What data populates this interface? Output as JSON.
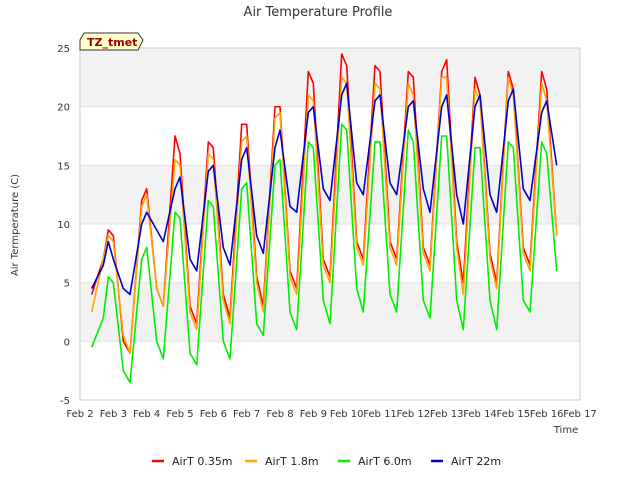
{
  "chart_data": {
    "type": "line",
    "title": "Air Temperature Profile",
    "xlabel": "Time",
    "ylabel": "Air Termperature (C)",
    "badge": "TZ_tmet",
    "xlim": [
      2,
      17
    ],
    "ylim": [
      -5,
      25
    ],
    "yticks": [
      -5,
      0,
      5,
      10,
      15,
      20,
      25
    ],
    "xticks": [
      {
        "v": 2,
        "label": "Feb 2"
      },
      {
        "v": 3,
        "label": "Feb 3"
      },
      {
        "v": 4,
        "label": "Feb 4"
      },
      {
        "v": 5,
        "label": "Feb 5"
      },
      {
        "v": 6,
        "label": "Feb 6"
      },
      {
        "v": 7,
        "label": "Feb 7"
      },
      {
        "v": 8,
        "label": "Feb 8"
      },
      {
        "v": 9,
        "label": "Feb 9"
      },
      {
        "v": 10,
        "label": "Feb 10"
      },
      {
        "v": 11,
        "label": "Feb 11"
      },
      {
        "v": 12,
        "label": "Feb 12"
      },
      {
        "v": 13,
        "label": "Feb 13"
      },
      {
        "v": 14,
        "label": "Feb 14"
      },
      {
        "v": 15,
        "label": "Feb 15"
      },
      {
        "v": 16,
        "label": "Feb 16"
      },
      {
        "v": 17,
        "label": "Feb 17"
      }
    ],
    "grid": true,
    "legend_position": "bottom",
    "series": [
      {
        "name": "AirT 0.35m",
        "color": "#ff0000",
        "x": [
          2.35,
          2.7,
          2.85,
          3.0,
          3.3,
          3.5,
          3.85,
          4.0,
          4.3,
          4.5,
          4.85,
          5.0,
          5.3,
          5.5,
          5.85,
          6.0,
          6.3,
          6.5,
          6.85,
          7.0,
          7.3,
          7.5,
          7.85,
          8.0,
          8.3,
          8.5,
          8.85,
          9.0,
          9.3,
          9.5,
          9.85,
          10.0,
          10.3,
          10.5,
          10.85,
          11.0,
          11.3,
          11.5,
          11.85,
          12.0,
          12.3,
          12.5,
          12.85,
          13.0,
          13.3,
          13.5,
          13.85,
          14.0,
          14.3,
          14.5,
          14.85,
          15.0,
          15.3,
          15.5,
          15.85,
          16.0,
          16.3
        ],
        "y": [
          4.0,
          7.0,
          9.5,
          9.0,
          0.0,
          -1.0,
          12.0,
          13.0,
          4.5,
          3.0,
          17.5,
          16.0,
          3.0,
          1.5,
          17.0,
          16.5,
          4.0,
          2.0,
          18.5,
          18.5,
          5.5,
          3.0,
          20.0,
          20.0,
          6.0,
          4.5,
          23.0,
          22.0,
          7.0,
          5.5,
          24.5,
          23.5,
          8.5,
          7.0,
          23.5,
          23.0,
          8.5,
          7.0,
          23.0,
          22.5,
          8.0,
          6.5,
          23.0,
          24.0,
          8.5,
          5.0,
          22.5,
          21.0,
          7.5,
          5.0,
          23.0,
          21.5,
          8.0,
          6.5,
          23.0,
          21.5,
          9.0
        ]
      },
      {
        "name": "AirT 1.8m",
        "color": "#ffa500",
        "x": [
          2.35,
          2.7,
          2.85,
          3.0,
          3.3,
          3.5,
          3.85,
          4.0,
          4.3,
          4.5,
          4.85,
          5.0,
          5.3,
          5.5,
          5.85,
          6.0,
          6.3,
          6.5,
          6.85,
          7.0,
          7.3,
          7.5,
          7.85,
          8.0,
          8.3,
          8.5,
          8.85,
          9.0,
          9.3,
          9.5,
          9.85,
          10.0,
          10.3,
          10.5,
          10.85,
          11.0,
          11.3,
          11.5,
          11.85,
          12.0,
          12.3,
          12.5,
          12.85,
          13.0,
          13.3,
          13.5,
          13.85,
          14.0,
          14.3,
          14.5,
          14.85,
          15.0,
          15.3,
          15.5,
          15.85,
          16.0,
          16.3
        ],
        "y": [
          2.5,
          7.0,
          9.0,
          8.5,
          0.5,
          -1.0,
          11.5,
          12.5,
          4.5,
          3.0,
          15.5,
          15.0,
          2.5,
          1.0,
          16.0,
          15.5,
          3.5,
          1.5,
          17.0,
          17.5,
          5.0,
          2.5,
          19.0,
          19.5,
          5.5,
          4.0,
          21.0,
          20.5,
          6.5,
          5.0,
          22.5,
          22.0,
          8.0,
          6.5,
          22.0,
          21.5,
          8.0,
          6.5,
          22.0,
          21.0,
          7.5,
          6.0,
          22.5,
          22.5,
          8.0,
          4.0,
          21.5,
          20.5,
          7.0,
          4.5,
          22.5,
          21.0,
          7.5,
          6.0,
          22.0,
          20.5,
          9.0
        ]
      },
      {
        "name": "AirT 6.0m",
        "color": "#00ee00",
        "x": [
          2.35,
          2.7,
          2.85,
          3.0,
          3.3,
          3.5,
          3.85,
          4.0,
          4.3,
          4.5,
          4.85,
          5.0,
          5.3,
          5.5,
          5.85,
          6.0,
          6.3,
          6.5,
          6.85,
          7.0,
          7.3,
          7.5,
          7.85,
          8.0,
          8.3,
          8.5,
          8.85,
          9.0,
          9.3,
          9.5,
          9.85,
          10.0,
          10.3,
          10.5,
          10.85,
          11.0,
          11.3,
          11.5,
          11.85,
          12.0,
          12.3,
          12.5,
          12.85,
          13.0,
          13.3,
          13.5,
          13.85,
          14.0,
          14.3,
          14.5,
          14.85,
          15.0,
          15.3,
          15.5,
          15.85,
          16.0,
          16.3
        ],
        "y": [
          -0.5,
          2.0,
          5.5,
          5.0,
          -2.5,
          -3.5,
          7.0,
          8.0,
          0.0,
          -1.5,
          11.0,
          10.5,
          -1.0,
          -2.0,
          12.0,
          11.5,
          0.0,
          -1.5,
          13.0,
          13.5,
          1.5,
          0.5,
          15.0,
          15.5,
          2.5,
          1.0,
          17.0,
          16.5,
          3.5,
          1.5,
          18.5,
          18.0,
          4.5,
          2.5,
          17.0,
          17.0,
          4.0,
          2.5,
          18.0,
          17.0,
          3.5,
          2.0,
          17.5,
          17.5,
          3.5,
          1.0,
          16.5,
          16.5,
          3.5,
          1.0,
          17.0,
          16.5,
          3.5,
          2.5,
          17.0,
          16.0,
          6.0
        ]
      },
      {
        "name": "AirT 22m",
        "color": "#0000cc",
        "x": [
          2.35,
          2.7,
          2.85,
          3.0,
          3.3,
          3.5,
          3.85,
          4.0,
          4.3,
          4.5,
          4.85,
          5.0,
          5.3,
          5.5,
          5.85,
          6.0,
          6.3,
          6.5,
          6.85,
          7.0,
          7.3,
          7.5,
          7.85,
          8.0,
          8.3,
          8.5,
          8.85,
          9.0,
          9.3,
          9.5,
          9.85,
          10.0,
          10.3,
          10.5,
          10.85,
          11.0,
          11.3,
          11.5,
          11.85,
          12.0,
          12.3,
          12.5,
          12.85,
          13.0,
          13.3,
          13.5,
          13.85,
          14.0,
          14.3,
          14.5,
          14.85,
          15.0,
          15.3,
          15.5,
          15.85,
          16.0,
          16.3
        ],
        "y": [
          4.5,
          6.5,
          8.5,
          7.0,
          4.5,
          4.0,
          10.0,
          11.0,
          9.5,
          8.5,
          13.0,
          14.0,
          7.0,
          6.0,
          14.5,
          15.0,
          8.0,
          6.5,
          15.5,
          16.5,
          9.0,
          7.5,
          16.5,
          18.0,
          11.5,
          11.0,
          19.5,
          20.0,
          13.0,
          12.0,
          21.0,
          22.0,
          13.5,
          12.5,
          20.5,
          21.0,
          13.5,
          12.5,
          20.0,
          20.5,
          13.0,
          11.0,
          20.0,
          21.0,
          12.5,
          10.0,
          20.0,
          21.0,
          12.5,
          11.0,
          20.5,
          21.5,
          13.0,
          12.0,
          19.5,
          20.5,
          15.0
        ]
      }
    ]
  }
}
